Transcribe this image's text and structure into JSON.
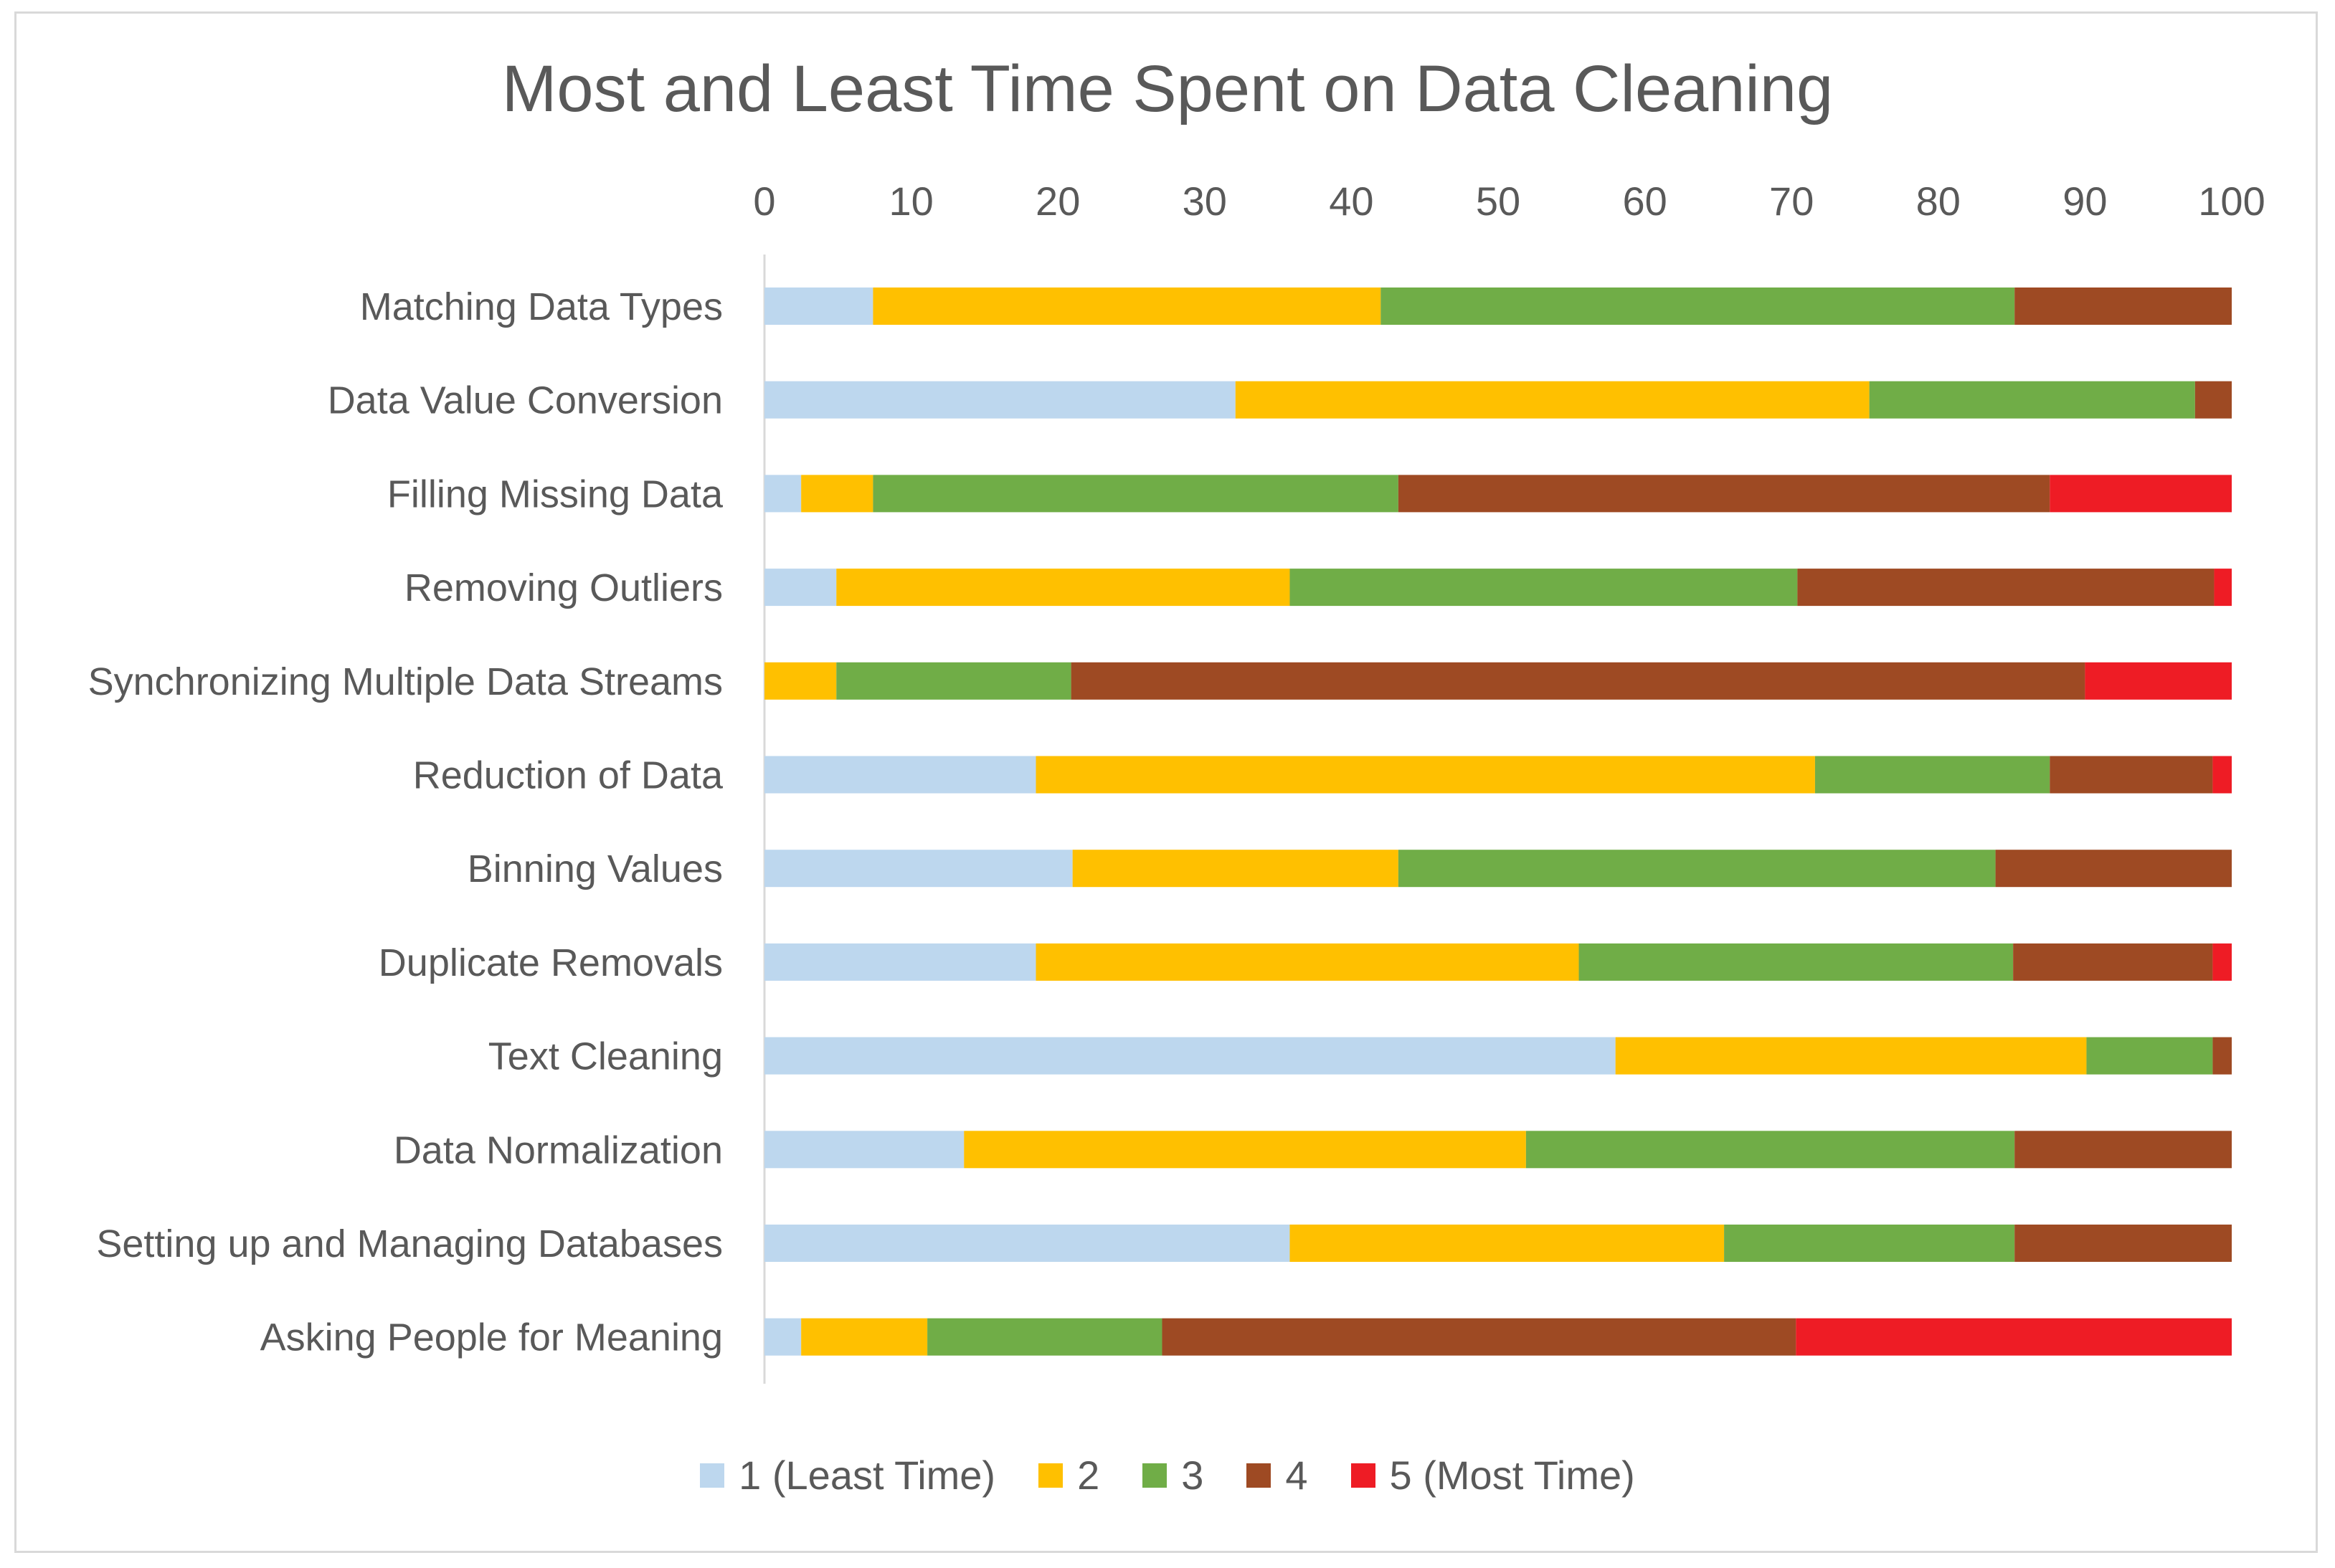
{
  "chart_data": {
    "type": "bar",
    "orientation": "horizontal",
    "stacked": true,
    "title": "Most and Least Time Spent on Data Cleaning",
    "xlim": [
      0,
      100
    ],
    "xticks": [
      0,
      10,
      20,
      30,
      40,
      50,
      60,
      70,
      80,
      90,
      100
    ],
    "x_axis_position": "top",
    "grid": false,
    "legend_position": "bottom",
    "categories": [
      "Matching Data Types",
      "Data Value Conversion",
      "Filling Missing Data",
      "Removing Outliers",
      "Synchronizing Multiple Data Streams",
      "Reduction of Data",
      "Binning Values",
      "Duplicate Removals",
      "Text Cleaning",
      "Data Normalization",
      "Setting up and Managing Databases",
      "Asking People for Meaning"
    ],
    "series": [
      {
        "name": "1 (Least Time)",
        "color": "#bdd7ee",
        "values": [
          7.4,
          32.1,
          2.5,
          4.9,
          0,
          18.5,
          21.0,
          18.5,
          58.0,
          13.6,
          35.8,
          2.5
        ]
      },
      {
        "name": "2",
        "color": "#ffc000",
        "values": [
          34.6,
          43.2,
          4.9,
          30.9,
          4.9,
          53.1,
          22.2,
          37.0,
          32.1,
          38.3,
          29.6,
          8.6
        ]
      },
      {
        "name": "3",
        "color": "#70ad47",
        "values": [
          43.2,
          22.2,
          35.8,
          34.6,
          16.0,
          16.0,
          40.7,
          29.6,
          8.6,
          33.3,
          19.8,
          16.0
        ]
      },
      {
        "name": "4",
        "color": "#9e4a23",
        "values": [
          14.8,
          2.5,
          44.4,
          28.4,
          69.1,
          11.1,
          16.1,
          13.6,
          1.3,
          14.8,
          14.8,
          43.2
        ]
      },
      {
        "name": "5 (Most Time)",
        "color": "#ee1c25",
        "values": [
          0,
          0,
          12.4,
          1.2,
          10.0,
          1.3,
          0,
          1.3,
          0,
          0,
          0,
          29.7
        ]
      }
    ]
  }
}
